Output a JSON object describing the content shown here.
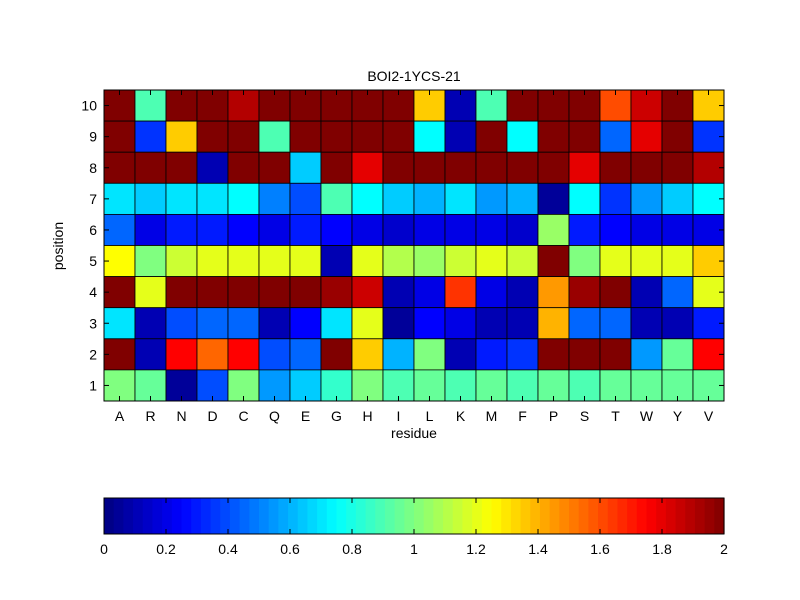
{
  "chart_data": {
    "type": "heatmap",
    "title": "BOI2-1YCS-21",
    "xlabel": "residue",
    "ylabel": "position",
    "x_categories": [
      "A",
      "R",
      "N",
      "D",
      "C",
      "Q",
      "E",
      "G",
      "H",
      "I",
      "L",
      "K",
      "M",
      "F",
      "P",
      "S",
      "T",
      "W",
      "Y",
      "V"
    ],
    "y_categories": [
      "1",
      "2",
      "3",
      "4",
      "5",
      "6",
      "7",
      "8",
      "9",
      "10"
    ],
    "colormap": "jet",
    "value_range": [
      0,
      2
    ],
    "rows_top_to_bottom": [
      "10",
      "9",
      "8",
      "7",
      "6",
      "5",
      "4",
      "3",
      "2",
      "1"
    ],
    "values": [
      [
        2.0,
        0.9,
        2.0,
        2.0,
        1.9,
        2.0,
        2.0,
        2.0,
        2.0,
        2.0,
        1.35,
        0.1,
        0.9,
        2.0,
        2.0,
        2.0,
        1.6,
        1.85,
        2.0,
        1.35
      ],
      [
        2.0,
        0.35,
        1.35,
        2.0,
        2.0,
        0.9,
        2.0,
        2.0,
        2.0,
        2.0,
        0.75,
        0.1,
        2.0,
        0.75,
        2.0,
        2.0,
        0.45,
        1.8,
        2.0,
        0.35
      ],
      [
        2.0,
        2.0,
        2.0,
        0.1,
        2.0,
        2.0,
        0.65,
        2.0,
        1.8,
        2.0,
        2.0,
        2.0,
        2.0,
        2.0,
        2.0,
        1.8,
        2.0,
        2.0,
        2.0,
        1.9
      ],
      [
        0.7,
        0.65,
        0.7,
        0.7,
        0.75,
        0.5,
        0.4,
        0.9,
        0.75,
        0.65,
        0.6,
        0.7,
        0.55,
        0.6,
        0.05,
        0.75,
        0.35,
        0.55,
        0.65,
        0.75
      ],
      [
        0.45,
        0.2,
        0.3,
        0.3,
        0.25,
        0.2,
        0.3,
        0.25,
        0.2,
        0.15,
        0.2,
        0.2,
        0.2,
        0.15,
        1.05,
        0.3,
        0.25,
        0.2,
        0.2,
        0.2
      ],
      [
        1.25,
        1.0,
        1.15,
        1.2,
        1.2,
        1.2,
        1.2,
        0.1,
        1.2,
        1.1,
        1.05,
        1.15,
        1.2,
        1.15,
        2.0,
        1.0,
        1.2,
        1.2,
        1.2,
        1.35
      ],
      [
        2.0,
        1.2,
        2.0,
        2.0,
        2.0,
        2.0,
        2.0,
        1.95,
        1.85,
        0.1,
        0.2,
        1.65,
        0.2,
        0.1,
        1.45,
        1.95,
        2.0,
        0.1,
        0.45,
        1.2
      ],
      [
        0.7,
        0.1,
        0.4,
        0.45,
        0.45,
        0.1,
        0.25,
        0.7,
        1.2,
        0.05,
        0.25,
        0.2,
        0.1,
        0.1,
        1.4,
        0.45,
        0.45,
        0.1,
        0.1,
        0.3
      ],
      [
        2.0,
        0.1,
        1.75,
        1.55,
        1.75,
        0.4,
        0.45,
        2.0,
        1.35,
        0.6,
        1.0,
        0.1,
        0.3,
        0.35,
        2.0,
        2.0,
        2.0,
        0.55,
        0.95,
        1.75
      ],
      [
        1.0,
        0.95,
        0.05,
        0.4,
        1.0,
        0.55,
        0.65,
        0.85,
        1.0,
        0.9,
        0.95,
        0.9,
        0.95,
        0.9,
        0.95,
        0.9,
        0.95,
        0.95,
        0.95,
        0.95
      ]
    ]
  },
  "colorbar": {
    "ticks": [
      "0",
      "0.2",
      "0.4",
      "0.6",
      "0.8",
      "1",
      "1.2",
      "1.4",
      "1.6",
      "1.8",
      "2"
    ]
  }
}
